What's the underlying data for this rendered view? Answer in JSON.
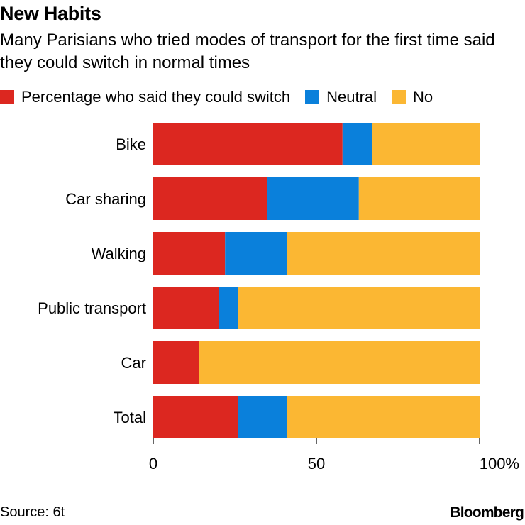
{
  "chart_data": {
    "type": "bar",
    "orientation": "horizontal",
    "stacked": true,
    "title": "New Habits",
    "subtitle": "Many Parisians who tried modes of transport for the first time said they could switch in normal times",
    "categories": [
      "Bike",
      "Car sharing",
      "Walking",
      "Public transport",
      "Car",
      "Total"
    ],
    "series": [
      {
        "name": "Percentage who said they could switch",
        "color": "#dc2720",
        "values": [
          58,
          35,
          22,
          20,
          14,
          26
        ]
      },
      {
        "name": "Neutral",
        "color": "#0a80db",
        "values": [
          9,
          28,
          19,
          6,
          0,
          15
        ]
      },
      {
        "name": "No",
        "color": "#fbb733",
        "values": [
          33,
          37,
          59,
          74,
          86,
          59
        ]
      }
    ],
    "xlim": [
      0,
      100
    ],
    "xticks": [
      0,
      50,
      100
    ],
    "xtick_labels": [
      "0",
      "50",
      "100%"
    ],
    "xlabel": "",
    "ylabel": "",
    "legend_position": "top"
  },
  "footer": {
    "source": "Source: 6t",
    "brand": "Bloomberg"
  }
}
